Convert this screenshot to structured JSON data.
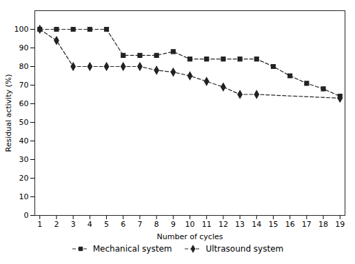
{
  "chart_data": {
    "type": "line",
    "xlabel": "Number of cycles",
    "ylabel": "Residual activity (%)",
    "xlim": [
      0.7,
      19.3
    ],
    "ylim": [
      0,
      110
    ],
    "xticks": [
      1,
      2,
      3,
      4,
      5,
      6,
      7,
      8,
      9,
      10,
      11,
      12,
      13,
      14,
      15,
      16,
      17,
      18,
      19
    ],
    "yticks": [
      0,
      10,
      20,
      30,
      40,
      50,
      60,
      70,
      80,
      90,
      100
    ],
    "grid": false,
    "legend": "bottom",
    "series": [
      {
        "name": "Mechanical system",
        "color": "#222222",
        "marker": "square",
        "line_style": "dashed",
        "x": [
          1,
          2,
          3,
          4,
          5,
          6,
          7,
          8,
          9,
          10,
          11,
          12,
          13,
          14,
          15,
          16,
          17,
          18,
          19
        ],
        "values": [
          100,
          100,
          100,
          100,
          100,
          86,
          86,
          86,
          88,
          84,
          84,
          84,
          84,
          84,
          80,
          75,
          71,
          68,
          64
        ]
      },
      {
        "name": "Ultrasound system",
        "color": "#222222",
        "marker": "diamond",
        "line_style": "dashed",
        "x": [
          1,
          2,
          3,
          4,
          5,
          6,
          7,
          8,
          9,
          10,
          11,
          12,
          13,
          14,
          19
        ],
        "values": [
          100,
          94,
          80,
          80,
          80,
          80,
          80,
          78,
          77,
          75,
          72,
          69,
          65,
          65,
          63
        ]
      }
    ]
  }
}
